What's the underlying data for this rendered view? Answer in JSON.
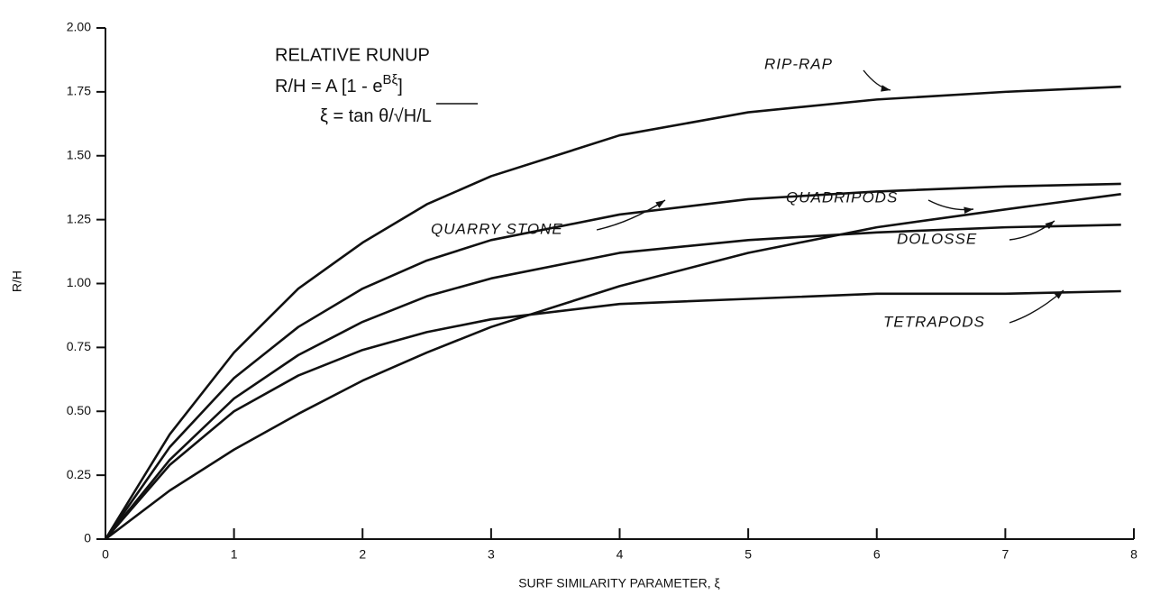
{
  "chart_data": {
    "type": "line",
    "annotation_title": "RELATIVE RUNUP",
    "formula": {
      "main": "R/H = A [1 - e",
      "exponent": "Bξ",
      "close": "]"
    },
    "formula_xi": {
      "left": "ξ = tan θ/√",
      "right": "H/L"
    },
    "x_label": "SURF SIMILARITY PARAMETER, ξ",
    "y_label": "R/H",
    "x": [
      0,
      0.5,
      1,
      1.5,
      2,
      2.5,
      3,
      4,
      5,
      6,
      7,
      7.9
    ],
    "series": [
      {
        "name": "RIP-RAP",
        "color": "#111111",
        "values": [
          0,
          0.41,
          0.73,
          0.98,
          1.16,
          1.31,
          1.42,
          1.58,
          1.67,
          1.72,
          1.75,
          1.77
        ]
      },
      {
        "name": "QUARRY STONE",
        "color": "#111111",
        "values": [
          0,
          0.36,
          0.63,
          0.83,
          0.98,
          1.09,
          1.17,
          1.27,
          1.33,
          1.36,
          1.38,
          1.39
        ]
      },
      {
        "name": "QUADRIPODS",
        "color": "#111111",
        "values": [
          0,
          0.19,
          0.35,
          0.49,
          0.62,
          0.73,
          0.83,
          0.99,
          1.12,
          1.22,
          1.29,
          1.35
        ]
      },
      {
        "name": "DOLOSSE",
        "color": "#111111",
        "values": [
          0,
          0.31,
          0.55,
          0.72,
          0.85,
          0.95,
          1.02,
          1.12,
          1.17,
          1.2,
          1.22,
          1.23
        ]
      },
      {
        "name": "TETRAPODS",
        "color": "#111111",
        "values": [
          0,
          0.29,
          0.5,
          0.64,
          0.74,
          0.81,
          0.86,
          0.92,
          0.94,
          0.96,
          0.96,
          0.97
        ]
      }
    ],
    "xlim": [
      0,
      8
    ],
    "xticks": [
      0,
      1,
      2,
      3,
      4,
      5,
      6,
      7,
      8
    ],
    "ylim": [
      0,
      2
    ],
    "yticks": [
      0,
      0.25,
      {
        "value": 0.5,
        "label": "0.50"
      },
      0.75,
      {
        "value": 1,
        "label": "1.00"
      },
      1.25,
      {
        "value": 1.5,
        "label": "1.50"
      },
      1.75,
      {
        "value": 2,
        "label": "2.00"
      }
    ],
    "grid": false
  }
}
